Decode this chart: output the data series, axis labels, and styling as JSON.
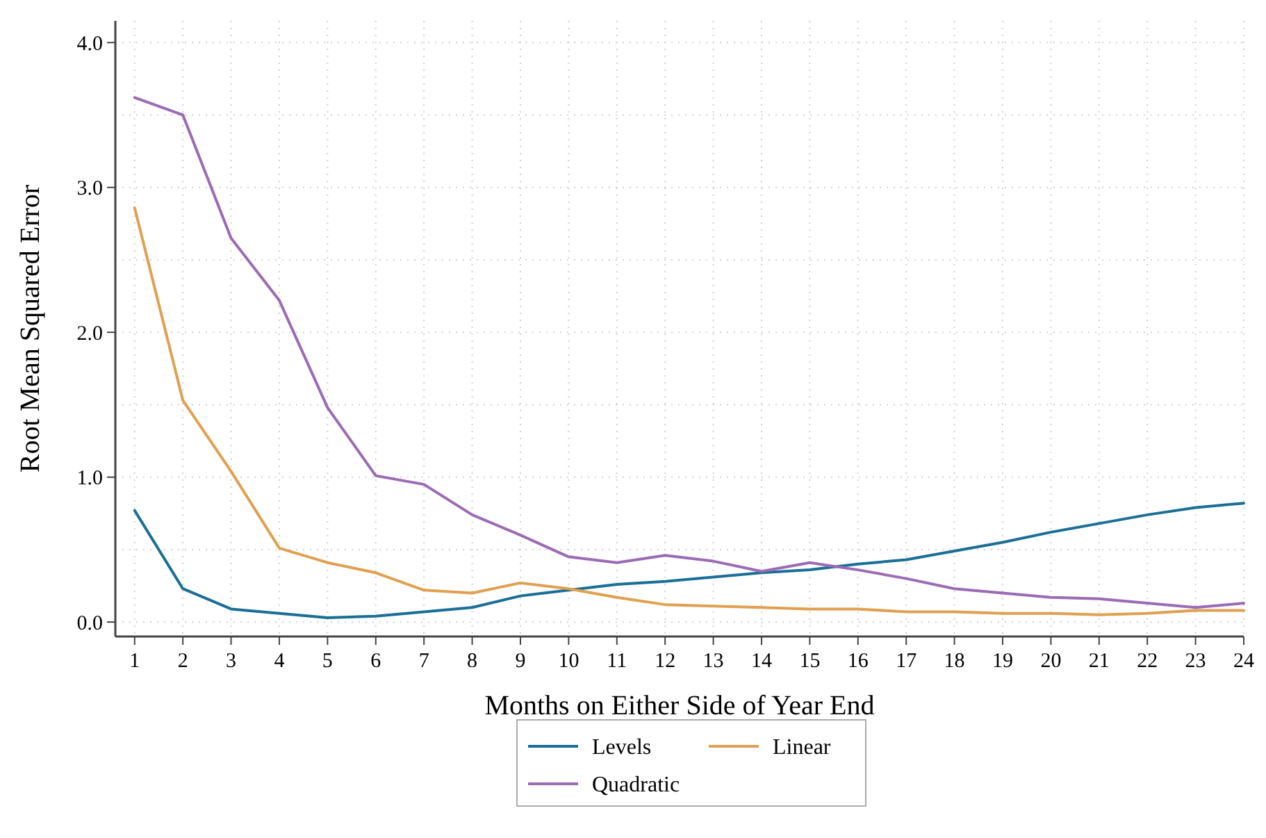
{
  "chart_data": {
    "type": "line",
    "xlabel": "Months on Either Side of Year End",
    "ylabel": "Root Mean Squared Error",
    "x": [
      1,
      2,
      3,
      4,
      5,
      6,
      7,
      8,
      9,
      10,
      11,
      12,
      13,
      14,
      15,
      16,
      17,
      18,
      19,
      20,
      21,
      22,
      23,
      24
    ],
    "xlim": [
      0.6,
      24
    ],
    "xticks": [
      1,
      2,
      3,
      4,
      5,
      6,
      7,
      8,
      9,
      10,
      11,
      12,
      13,
      14,
      15,
      16,
      17,
      18,
      19,
      20,
      21,
      22,
      23,
      24
    ],
    "ylim": [
      -0.1,
      4.15
    ],
    "yticks": [
      {
        "value": 0,
        "label": "0.0"
      },
      {
        "value": 0.5,
        "label": null
      },
      {
        "value": 1,
        "label": "1.0"
      },
      {
        "value": 1.5,
        "label": null
      },
      {
        "value": 2,
        "label": "2.0"
      },
      {
        "value": 2.5,
        "label": null
      },
      {
        "value": 3,
        "label": "3.0"
      },
      {
        "value": 3.5,
        "label": null
      },
      {
        "value": 4,
        "label": "4.0"
      }
    ],
    "grid": true,
    "legend": "bottom",
    "marker": "none",
    "line_style": "solid",
    "series": [
      {
        "name": "Levels",
        "color": "#1a6f96",
        "values": [
          0.77,
          0.23,
          0.09,
          0.06,
          0.03,
          0.04,
          0.07,
          0.1,
          0.18,
          0.22,
          0.26,
          0.28,
          0.31,
          0.34,
          0.36,
          0.4,
          0.43,
          0.49,
          0.55,
          0.62,
          0.68,
          0.74,
          0.79,
          0.82
        ]
      },
      {
        "name": "Linear",
        "color": "#e0a050",
        "values": [
          2.86,
          1.53,
          1.04,
          0.51,
          0.41,
          0.34,
          0.22,
          0.2,
          0.27,
          0.23,
          0.17,
          0.12,
          0.11,
          0.1,
          0.09,
          0.09,
          0.07,
          0.07,
          0.06,
          0.06,
          0.05,
          0.06,
          0.08,
          0.08
        ]
      },
      {
        "name": "Quadratic",
        "color": "#9b6bb5",
        "values": [
          3.62,
          3.5,
          2.65,
          2.22,
          1.48,
          1.01,
          0.95,
          0.74,
          0.6,
          0.45,
          0.41,
          0.46,
          0.42,
          0.35,
          0.41,
          0.36,
          0.3,
          0.23,
          0.2,
          0.17,
          0.16,
          0.13,
          0.1,
          0.13
        ]
      }
    ]
  }
}
